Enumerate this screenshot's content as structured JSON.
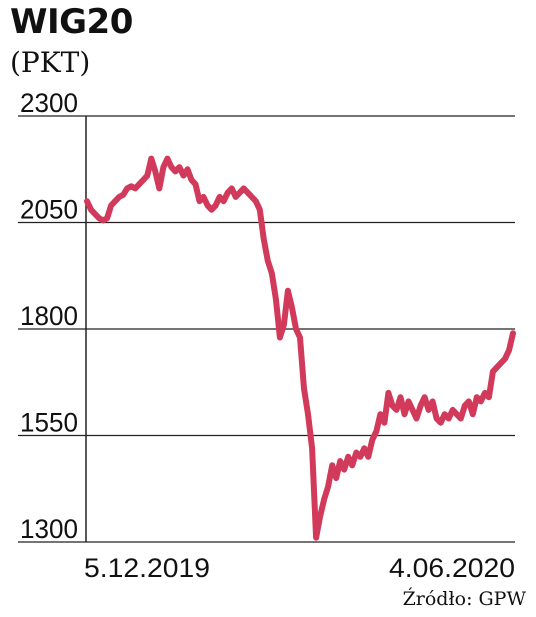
{
  "header": {
    "title": "WIG20",
    "unit": "(PKT)"
  },
  "footer": {
    "source": "Źródło: GPW"
  },
  "chart_data": {
    "type": "line",
    "title": "WIG20",
    "ylabel": "(PKT)",
    "xlabel": "",
    "ylim": [
      1300,
      2300
    ],
    "yticks": [
      1300,
      1550,
      1800,
      2050,
      2300
    ],
    "x_tick_labels": [
      "5.12.2019",
      "4.06.2020"
    ],
    "grid": "horizontal",
    "line_color": "#d13a5a",
    "series": [
      {
        "values": [
          2100,
          2080,
          2070,
          2060,
          2055,
          2060,
          2090,
          2100,
          2110,
          2115,
          2130,
          2135,
          2130,
          2140,
          2150,
          2160,
          2200,
          2170,
          2130,
          2180,
          2200,
          2180,
          2170,
          2180,
          2160,
          2175,
          2150,
          2140,
          2100,
          2110,
          2090,
          2080,
          2090,
          2110,
          2100,
          2120,
          2130,
          2110,
          2120,
          2130,
          2120,
          2110,
          2100,
          2080,
          2010,
          1960,
          1930,
          1870,
          1780,
          1810,
          1890,
          1850,
          1800,
          1780,
          1660,
          1600,
          1520,
          1310,
          1360,
          1400,
          1430,
          1480,
          1450,
          1490,
          1470,
          1500,
          1480,
          1510,
          1500,
          1520,
          1500,
          1540,
          1560,
          1600,
          1580,
          1650,
          1620,
          1610,
          1640,
          1600,
          1630,
          1610,
          1590,
          1620,
          1640,
          1610,
          1630,
          1590,
          1580,
          1600,
          1590,
          1610,
          1600,
          1590,
          1620,
          1630,
          1600,
          1640,
          1630,
          1650,
          1640,
          1700,
          1710,
          1720,
          1730,
          1750,
          1790
        ]
      }
    ]
  }
}
